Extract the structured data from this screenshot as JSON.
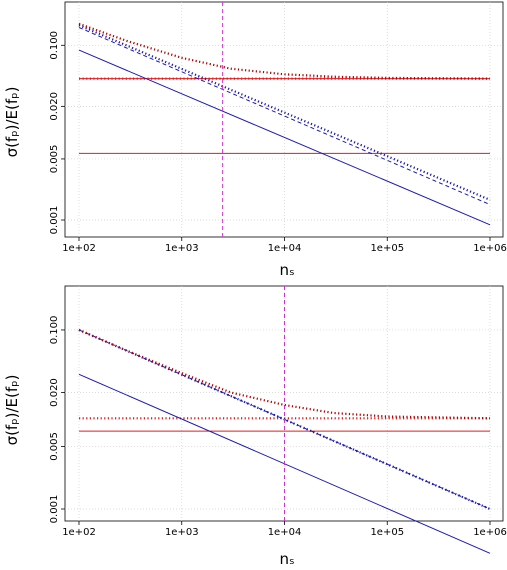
{
  "chart_data": [
    {
      "type": "line",
      "x_scale": "log",
      "y_scale": "log",
      "xlim": [
        100,
        1000000
      ],
      "ylim": [
        0.001,
        0.2
      ],
      "grid": true,
      "xlabel": "nₛ",
      "ylabel": "σ(fₚ)/E(fₚ)",
      "x_ticks": [
        {
          "value": 100,
          "label": "1e+02"
        },
        {
          "value": 1000,
          "label": "1e+03"
        },
        {
          "value": 10000,
          "label": "1e+04"
        },
        {
          "value": 100000,
          "label": "1e+05"
        },
        {
          "value": 1000000,
          "label": "1e+06"
        }
      ],
      "y_ticks": [
        {
          "value": 0.001,
          "label": "0.001"
        },
        {
          "value": 0.005,
          "label": "0.005"
        },
        {
          "value": 0.02,
          "label": "0.020"
        },
        {
          "value": 0.1,
          "label": "0.100"
        }
      ],
      "vline": {
        "x": 2500,
        "color": "#cc33cc",
        "style": "dashed"
      },
      "hlines": [
        {
          "y": 0.0415,
          "color": "#e41a1c",
          "style": "solid"
        },
        {
          "y": 0.0415,
          "color": "#e41a1c",
          "style": "dotted"
        },
        {
          "y": 0.0058,
          "color": "#e41a1c",
          "style": "solid"
        }
      ],
      "series": [
        {
          "x": [
            100,
            1000000
          ],
          "y": [
            0.088,
            0.00088
          ],
          "color": "#1a1ab3",
          "style": "solid"
        },
        {
          "x": [
            100,
            1000000
          ],
          "y": [
            0.17,
            0.0017
          ],
          "color": "#1a1ab3",
          "style": "dotted"
        },
        {
          "x": [
            100,
            1000000
          ],
          "y": [
            0.16,
            0.0015
          ],
          "color": "#1a1ab3",
          "style": "dashed"
        },
        {
          "x": [
            100,
            300,
            1000,
            3000,
            10000,
            30000,
            100000,
            1000000
          ],
          "y": [
            0.176,
            0.111,
            0.072,
            0.054,
            0.0465,
            0.0437,
            0.0423,
            0.0416
          ],
          "color": "#b30000",
          "style": "dotted"
        }
      ]
    },
    {
      "type": "line",
      "x_scale": "log",
      "y_scale": "log",
      "xlim": [
        100,
        1000000
      ],
      "ylim": [
        0.001,
        0.2
      ],
      "grid": true,
      "xlabel": "nₛ",
      "ylabel": "σ(fₚ)/E(fₚ)",
      "x_ticks": [
        {
          "value": 100,
          "label": "1e+02"
        },
        {
          "value": 1000,
          "label": "1e+03"
        },
        {
          "value": 10000,
          "label": "1e+04"
        },
        {
          "value": 100000,
          "label": "1e+05"
        },
        {
          "value": 1000000,
          "label": "1e+06"
        }
      ],
      "y_ticks": [
        {
          "value": 0.001,
          "label": "0.001"
        },
        {
          "value": 0.005,
          "label": "0.005"
        },
        {
          "value": 0.02,
          "label": "0.020"
        },
        {
          "value": 0.1,
          "label": "0.100"
        }
      ],
      "vline": {
        "x": 10000,
        "color": "#cc33cc",
        "style": "dashed"
      },
      "hlines": [
        {
          "y": 0.0103,
          "color": "#e41a1c",
          "style": "dotted"
        },
        {
          "y": 0.0074,
          "color": "#e41a1c",
          "style": "solid"
        }
      ],
      "series": [
        {
          "x": [
            100,
            1000000
          ],
          "y": [
            0.032,
            0.00032
          ],
          "color": "#1a1ab3",
          "style": "solid"
        },
        {
          "x": [
            100,
            1000000
          ],
          "y": [
            0.1,
            0.001
          ],
          "color": "#1a1ab3",
          "style": "dotted"
        },
        {
          "x": [
            100,
            1000000
          ],
          "y": [
            0.1,
            0.001
          ],
          "color": "#1a1ab3",
          "style": "dashed"
        },
        {
          "x": [
            100,
            300,
            1000,
            3000,
            10000,
            30000,
            100000,
            1000000
          ],
          "y": [
            0.1,
            0.058,
            0.033,
            0.02,
            0.0145,
            0.0118,
            0.0108,
            0.0103
          ],
          "color": "#b30000",
          "style": "dotted"
        }
      ]
    }
  ]
}
